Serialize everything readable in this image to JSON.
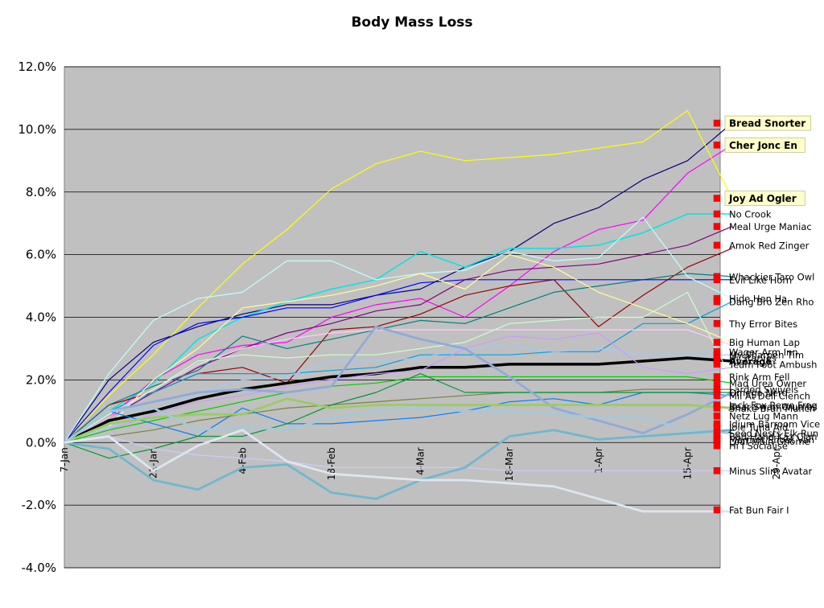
{
  "chart_data": {
    "type": "line",
    "title": "Body Mass Loss",
    "xlabel": "",
    "ylabel": "",
    "ylim": [
      -0.04,
      0.12
    ],
    "ytick_labels": [
      "-4.0%",
      "-2.0%",
      "0.0%",
      "2.0%",
      "4.0%",
      "6.0%",
      "8.0%",
      "10.0%",
      "12.0%"
    ],
    "ytick_values": [
      -0.04,
      -0.02,
      0,
      0.02,
      0.04,
      0.06,
      0.08,
      0.1,
      0.12
    ],
    "x_tick_labels": [
      "7-Jan",
      "21-Jan",
      "4-Feb",
      "18-Feb",
      "4-Mar",
      "18-Mar",
      "1-Apr",
      "15-Apr",
      "29-Apr"
    ],
    "x": [
      "7-Jan",
      "14-Jan",
      "21-Jan",
      "28-Jan",
      "4-Feb",
      "11-Feb",
      "18-Feb",
      "25-Feb",
      "4-Mar",
      "11-Mar",
      "18-Mar",
      "25-Mar",
      "1-Apr",
      "8-Apr",
      "15-Apr",
      "22-Apr"
    ],
    "grid": "horizontal",
    "plot_background": "#c0c0c0",
    "series": [
      {
        "name": "Bread Snorter",
        "color": "#00007f",
        "width": 1.2,
        "highlight": true,
        "values": [
          0,
          0.02,
          0.032,
          0.037,
          0.041,
          0.044,
          0.044,
          0.047,
          0.049,
          0.056,
          0.061,
          0.07,
          0.075,
          0.084,
          0.09,
          0.102
        ]
      },
      {
        "name": "Cher Jonc En",
        "color": "#ff00ff",
        "width": 1.2,
        "highlight": true,
        "values": [
          0,
          0.008,
          0.02,
          0.028,
          0.031,
          0.032,
          0.04,
          0.044,
          0.046,
          0.04,
          0.05,
          0.061,
          0.068,
          0.071,
          0.086,
          0.095
        ]
      },
      {
        "name": "Joy Ad Ogler",
        "color": "#ffff00",
        "width": 1.2,
        "highlight": true,
        "values": [
          0,
          0.015,
          0.028,
          0.043,
          0.057,
          0.068,
          0.081,
          0.089,
          0.093,
          0.09,
          0.091,
          0.092,
          0.094,
          0.096,
          0.106,
          0.078
        ]
      },
      {
        "name": "No Crook",
        "color": "#00e5e5",
        "width": 1.5,
        "values": [
          0,
          0.01,
          0.019,
          0.033,
          0.04,
          0.045,
          0.049,
          0.052,
          0.061,
          0.056,
          0.062,
          0.062,
          0.063,
          0.067,
          0.073,
          0.073
        ]
      },
      {
        "name": "Meal Urge Maniac",
        "color": "#800080",
        "width": 1.2,
        "values": [
          0,
          0.008,
          0.016,
          0.024,
          0.03,
          0.035,
          0.038,
          0.042,
          0.044,
          0.052,
          0.055,
          0.056,
          0.057,
          0.06,
          0.063,
          0.069
        ]
      },
      {
        "name": "Amok Red Zinger",
        "color": "#990000",
        "width": 1.2,
        "values": [
          0,
          0.012,
          0.016,
          0.022,
          0.024,
          0.019,
          0.036,
          0.037,
          0.041,
          0.047,
          0.05,
          0.052,
          0.037,
          0.047,
          0.056,
          0.062
        ]
      },
      {
        "name": "Whackier Taro Owl",
        "color": "#007f7f",
        "width": 1.2,
        "values": [
          0,
          0.012,
          0.018,
          0.023,
          0.034,
          0.03,
          0.033,
          0.036,
          0.039,
          0.038,
          0.043,
          0.048,
          0.05,
          0.052,
          0.054,
          0.053
        ]
      },
      {
        "name": "Evil Like Horn",
        "color": "#0000ff",
        "width": 1.2,
        "values": [
          0,
          0.016,
          0.031,
          0.038,
          0.04,
          0.043,
          0.043,
          0.047,
          0.051,
          0.052,
          0.052,
          0.052,
          0.052,
          0.052,
          0.052,
          0.052
        ]
      },
      {
        "name": "Hide Hen Ha",
        "color": "#c0ffff",
        "width": 1.2,
        "values": [
          0,
          0.022,
          0.039,
          0.046,
          0.048,
          0.058,
          0.058,
          0.052,
          0.054,
          0.055,
          0.061,
          0.058,
          0.059,
          0.072,
          0.053,
          0.046
        ]
      },
      {
        "name": "Dang Bro Zen Rho",
        "color": "#00a0e0",
        "width": 1.2,
        "values": [
          0,
          0.01,
          0.016,
          0.022,
          0.022,
          0.022,
          0.023,
          0.024,
          0.028,
          0.028,
          0.028,
          0.029,
          0.029,
          0.038,
          0.038,
          0.045
        ]
      },
      {
        "name": "Thy Error Bites",
        "color": "#ffff99",
        "width": 1.2,
        "values": [
          0,
          0.005,
          0.02,
          0.03,
          0.043,
          0.045,
          0.047,
          0.05,
          0.054,
          0.049,
          0.06,
          0.056,
          0.048,
          0.043,
          0.038,
          0.032
        ]
      },
      {
        "name": "Big Human Lap",
        "color": "#ffccff",
        "width": 1.2,
        "values": [
          0,
          0.008,
          0.017,
          0.025,
          0.03,
          0.033,
          0.035,
          0.036,
          0.036,
          0.036,
          0.036,
          0.036,
          0.036,
          0.036,
          0.036,
          0.031
        ]
      },
      {
        "name": "Wager Arm Inn",
        "color": "#99ccff",
        "width": 1.2,
        "values": [
          0,
          0.005,
          0.01,
          0.016,
          0.02,
          0.021,
          0.026,
          0.026,
          0.027,
          0.03,
          0.031,
          0.029,
          0.03,
          0.028,
          0.028,
          0.028
        ]
      },
      {
        "name": "Average",
        "color": "#000000",
        "width": 3.5,
        "bold_label": true,
        "values": [
          0,
          0.007,
          0.01,
          0.014,
          0.017,
          0.019,
          0.021,
          0.022,
          0.024,
          0.024,
          0.025,
          0.025,
          0.025,
          0.026,
          0.027,
          0.026
        ]
      },
      {
        "name": "Team Foot Ambush",
        "color": "#cc99ff",
        "width": 1.2,
        "values": [
          0,
          0.004,
          0.009,
          0.013,
          0.015,
          0.018,
          0.02,
          0.022,
          0.023,
          0.03,
          0.034,
          0.033,
          0.035,
          0.024,
          0.022,
          0.024
        ]
      },
      {
        "name": "Rink Arm Fell",
        "color": "#ccffcc",
        "width": 1.2,
        "values": [
          0,
          0.009,
          0.017,
          0.026,
          0.028,
          0.027,
          0.028,
          0.028,
          0.03,
          0.032,
          0.038,
          0.039,
          0.04,
          0.04,
          0.048,
          0.02
        ]
      },
      {
        "name": "Mad Urea Owner",
        "color": "#00cc00",
        "width": 1.2,
        "values": [
          0,
          0.004,
          0.007,
          0.01,
          0.013,
          0.016,
          0.018,
          0.019,
          0.021,
          0.021,
          0.021,
          0.021,
          0.021,
          0.021,
          0.021,
          0.019
        ]
      },
      {
        "name": "Larded Swivels",
        "color": "#7f7f3f",
        "width": 1.2,
        "values": [
          0,
          0.002,
          0.004,
          0.007,
          0.009,
          0.011,
          0.012,
          0.013,
          0.014,
          0.015,
          0.016,
          0.016,
          0.016,
          0.017,
          0.017,
          0.017
        ]
      },
      {
        "name": "Mil At Dell Clench",
        "color": "#0080ff",
        "width": 1.2,
        "values": [
          0,
          0.01,
          0.006,
          0.002,
          0.011,
          0.006,
          0.006,
          0.007,
          0.008,
          0.01,
          0.013,
          0.014,
          0.012,
          0.016,
          0.016,
          0.015
        ]
      },
      {
        "name": "Netz Lug Mann",
        "color": "#009933",
        "width": 1.2,
        "values": [
          0,
          -0.005,
          -0.002,
          0.002,
          0.002,
          0.006,
          0.012,
          0.016,
          0.022,
          0.016,
          0.016,
          0.016,
          0.016,
          0.016,
          0.016,
          0.016
        ]
      },
      {
        "name": "Idium Barroom Vice",
        "color": "#8faadc",
        "width": 2.8,
        "values": [
          0,
          0.01,
          0.013,
          0.016,
          0.017,
          0.016,
          0.018,
          0.037,
          0.033,
          0.03,
          0.021,
          0.011,
          0.007,
          0.003,
          0.009,
          0.016
        ]
      },
      {
        "name": "Joie Tuna Aid",
        "color": "#99cc66",
        "width": 2.8,
        "values": [
          0,
          0.006,
          0.008,
          0.009,
          0.009,
          0.014,
          0.011,
          0.012,
          0.012,
          0.012,
          0.012,
          0.012,
          0.012,
          0.012,
          0.012,
          0.011
        ]
      },
      {
        "name": "Hi I Socialise",
        "color": "#a6c8d6",
        "width": 2.8,
        "values": [
          0,
          0.01,
          0.011,
          0.004,
          0.005,
          0.004,
          0.008,
          0.01,
          0.011,
          0.01,
          0.01,
          0.009,
          0.008,
          0.008,
          0.004,
          0.003
        ]
      },
      {
        "name": "Minus Slim Avatar",
        "color": "#ccccff",
        "width": 1.2,
        "values": [
          0,
          0.002,
          -0.002,
          -0.004,
          -0.005,
          -0.006,
          -0.008,
          -0.008,
          -0.008,
          -0.008,
          -0.009,
          -0.009,
          -0.009,
          -0.009,
          -0.009,
          -0.009
        ]
      },
      {
        "name": "Bad Hand Kaz Clan",
        "color": "#6fb7d0",
        "width": 2.8,
        "values": [
          0,
          -0.002,
          -0.012,
          -0.015,
          -0.008,
          -0.007,
          -0.016,
          -0.018,
          -0.012,
          -0.008,
          0.002,
          0.004,
          0.001,
          0.002,
          0.003,
          0.004
        ]
      },
      {
        "name": "Fat Bun Fair I",
        "color": "#dde6f0",
        "width": 2.8,
        "values": [
          0,
          0.002,
          -0.009,
          -0.001,
          0.004,
          -0.006,
          -0.01,
          -0.011,
          -0.012,
          -0.012,
          -0.013,
          -0.014,
          -0.018,
          -0.022,
          -0.022,
          -0.022
        ]
      }
    ],
    "marker_labels": [
      {
        "text": "Bread Snorter",
        "value": 0.102,
        "highlight": true
      },
      {
        "text": "Cher Jonc En",
        "value": 0.095,
        "highlight": true
      },
      {
        "text": "Joy Ad Ogler",
        "value": 0.078,
        "highlight": true
      },
      {
        "text": "No Crook",
        "value": 0.073
      },
      {
        "text": "Meal Urge Maniac",
        "value": 0.069
      },
      {
        "text": "Amok Red Zinger",
        "value": 0.063
      },
      {
        "text": "Whackier Taro Owl",
        "value": 0.053
      },
      {
        "text": "Evil Like Horn",
        "value": 0.052
      },
      {
        "text": "Hide Hen Ha",
        "value": 0.046
      },
      {
        "text": "Dang Bro Zen Rho",
        "value": 0.045
      },
      {
        "text": "Thy Error Bites",
        "value": 0.038
      },
      {
        "text": "Big Human Lap",
        "value": 0.032
      },
      {
        "text": "Wager Arm Inn",
        "value": 0.029
      },
      {
        "text": "My Sharpen Tim",
        "value": 0.028
      },
      {
        "text": "Hi Starves",
        "value": 0.027
      },
      {
        "text": "Average",
        "value": 0.026,
        "bold": true
      },
      {
        "text": "Team Foot Ambush",
        "value": 0.025
      },
      {
        "text": "Rink Arm Fell",
        "value": 0.021
      },
      {
        "text": "Mad Urea Owner",
        "value": 0.019
      },
      {
        "text": "Larded Swivels",
        "value": 0.017
      },
      {
        "text": "Omega Nerd",
        "value": 0.016
      },
      {
        "text": "Mil At Dell Clench",
        "value": 0.015
      },
      {
        "text": "Jack Fox Rewo Frog",
        "value": 0.012
      },
      {
        "text": "Bear Swan Crumbs",
        "value": 0.0115
      },
      {
        "text": "Snake Bran Munch",
        "value": 0.011
      },
      {
        "text": "Netz Lug Mann",
        "value": 0.0085
      },
      {
        "text": "Idium Barroom Vice",
        "value": 0.006
      },
      {
        "text": "Joie Tuna Aid",
        "value": 0.005
      },
      {
        "text": "Seed Nests Elk Run",
        "value": 0.003
      },
      {
        "text": "Bad Hand Kaz Clan",
        "value": 0.002
      },
      {
        "text": "Marmot Shoat Van",
        "value": 0.001
      },
      {
        "text": "Loaf Main Gnome",
        "value": 0.0005
      },
      {
        "text": "Hi I Socialise",
        "value": -0.001
      },
      {
        "text": "Minus Slim Avatar",
        "value": -0.009
      },
      {
        "text": "Fat Bun Fair I",
        "value": -0.0215
      }
    ]
  }
}
